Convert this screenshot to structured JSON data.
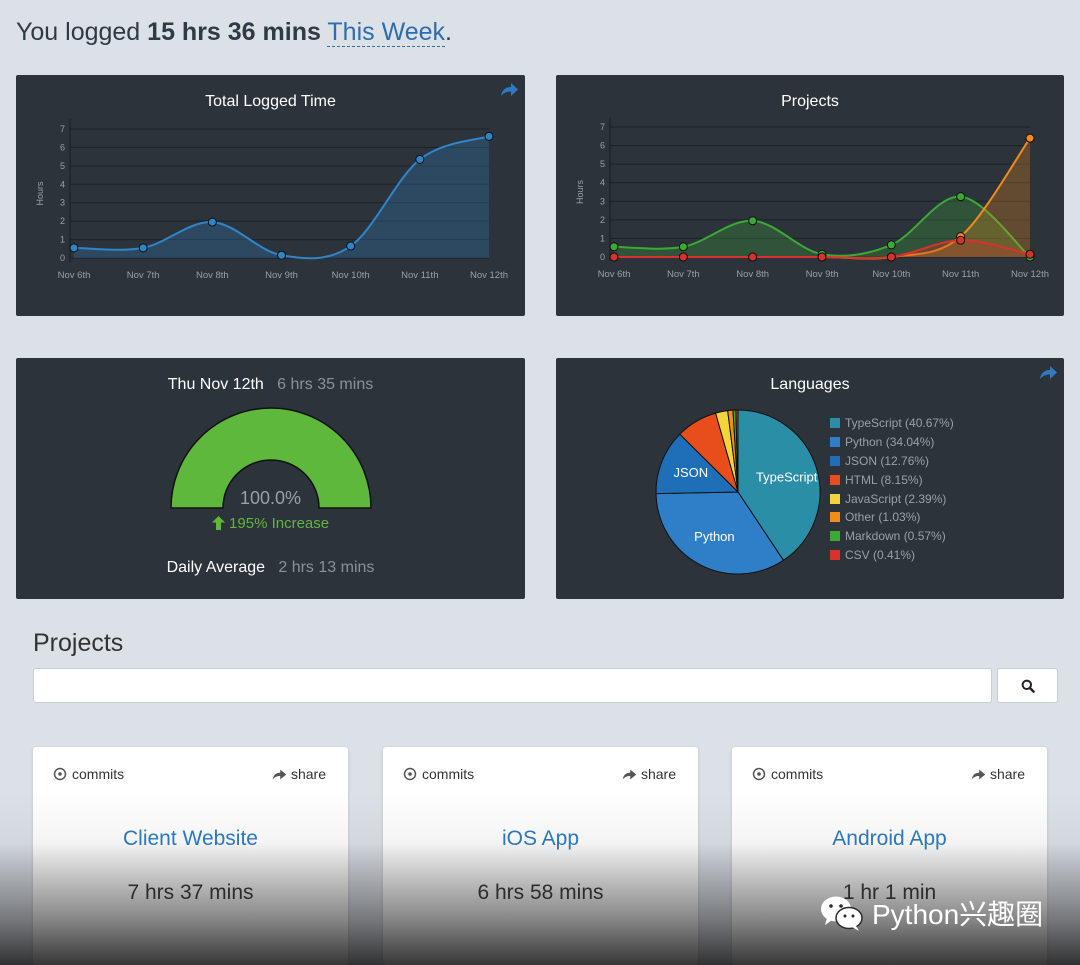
{
  "header": {
    "prefix": "You logged",
    "total": "15 hrs 36 mins",
    "range": "This Week",
    "suffix": "."
  },
  "total_logged": {
    "title": "Total Logged Time",
    "ylabel": "Hours"
  },
  "projects_chart": {
    "title": "Projects",
    "ylabel": "Hours"
  },
  "today": {
    "date": "Thu Nov 12th",
    "time": "6 hrs 35 mins",
    "percent": "100.0%",
    "increase": "195% Increase",
    "daily_label": "Daily Average",
    "daily_value": "2 hrs 13 mins",
    "gauge_fill": 1.0,
    "gauge_color": "#5db83c"
  },
  "languages": {
    "title": "Languages"
  },
  "chart_data": [
    {
      "type": "area",
      "title": "Total Logged Time",
      "ylabel": "Hours",
      "categories": [
        "Nov 6th",
        "Nov 7th",
        "Nov 8th",
        "Nov 9th",
        "Nov 10th",
        "Nov 11th",
        "Nov 12th"
      ],
      "yticks": [
        "0",
        "1",
        "2",
        "3",
        "4",
        "5",
        "6",
        "7"
      ],
      "ylim": [
        0,
        7
      ],
      "series": [
        {
          "values": [
            0.55,
            0.55,
            1.95,
            0.15,
            0.65,
            5.35,
            6.6
          ],
          "color": "#2e86c9"
        }
      ]
    },
    {
      "type": "area",
      "title": "Projects",
      "ylabel": "Hours",
      "categories": [
        "Nov 6th",
        "Nov 7th",
        "Nov 8th",
        "Nov 9th",
        "Nov 10th",
        "Nov 11th",
        "Nov 12th"
      ],
      "yticks": [
        "0",
        "1",
        "2",
        "3",
        "4",
        "5",
        "6",
        "7"
      ],
      "ylim": [
        0,
        7
      ],
      "series": [
        {
          "values": [
            0.55,
            0.55,
            1.95,
            0.15,
            0.65,
            3.25,
            0.0
          ],
          "color": "#3aaa35"
        },
        {
          "values": [
            0.0,
            0.0,
            0.0,
            0.0,
            0.0,
            1.1,
            6.4
          ],
          "color": "#f28c1a"
        },
        {
          "values": [
            0.0,
            0.0,
            0.0,
            0.0,
            0.0,
            0.9,
            0.15
          ],
          "color": "#d9312b"
        }
      ]
    },
    {
      "type": "pie",
      "title": "Languages",
      "slices": [
        {
          "label": "TypeScript",
          "legend": "TypeScript (40.67%)",
          "value": 40.67,
          "color": "#2a8fa6",
          "show_label": true
        },
        {
          "label": "Python",
          "legend": "Python (34.04%)",
          "value": 34.04,
          "color": "#2f7fc8",
          "show_label": true
        },
        {
          "label": "JSON",
          "legend": "JSON (12.76%)",
          "value": 12.76,
          "color": "#1f6fb8",
          "show_label": true
        },
        {
          "label": "HTML",
          "legend": "HTML (8.15%)",
          "value": 8.15,
          "color": "#e84e1b",
          "show_label": false
        },
        {
          "label": "JavaScript",
          "legend": "JavaScript (2.39%)",
          "value": 2.39,
          "color": "#f2d43b",
          "show_label": false
        },
        {
          "label": "Other",
          "legend": "Other (1.03%)",
          "value": 1.03,
          "color": "#f28c1a",
          "show_label": false
        },
        {
          "label": "Markdown",
          "legend": "Markdown (0.57%)",
          "value": 0.57,
          "color": "#3aaa35",
          "show_label": false
        },
        {
          "label": "CSV",
          "legend": "CSV (0.41%)",
          "value": 0.41,
          "color": "#d9312b",
          "show_label": false
        }
      ]
    }
  ],
  "projects_section": {
    "title": "Projects",
    "search_placeholder": ""
  },
  "project_cards": [
    {
      "commits_label": "commits",
      "share_label": "share",
      "name": "Client Website",
      "time": "7 hrs 37 mins"
    },
    {
      "commits_label": "commits",
      "share_label": "share",
      "name": "iOS App",
      "time": "6 hrs 58 mins"
    },
    {
      "commits_label": "commits",
      "share_label": "share",
      "name": "Android App",
      "time": "1 hr 1 min"
    }
  ],
  "watermark": {
    "text": "Python兴趣圈"
  },
  "colors": {
    "background": "#dce1e8",
    "panel": "#2d333b",
    "link": "#2d6cad",
    "project_link": "#2d7bc4",
    "increase": "#5db83c"
  }
}
